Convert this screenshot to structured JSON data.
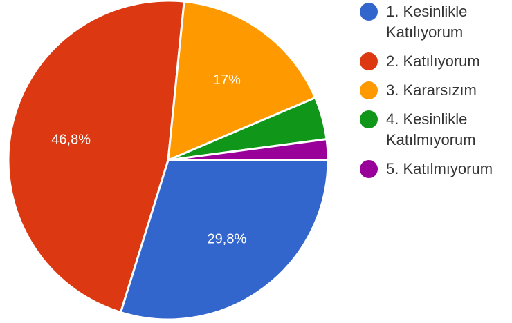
{
  "chart_data": {
    "type": "pie",
    "slices": [
      {
        "label": "1. Kesinlikle Katılıyorum",
        "value": 29.8,
        "color": "#3366cc",
        "data_label": "29,8%"
      },
      {
        "label": "2. Katılıyorum",
        "value": 46.8,
        "color": "#dc3912",
        "data_label": "46,8%"
      },
      {
        "label": "3. Kararsızım",
        "value": 17.0,
        "color": "#ff9900",
        "data_label": "17%"
      },
      {
        "label": "4. Kesinlikle Katılmıyorum",
        "value": 4.3,
        "color": "#109618",
        "data_label": ""
      },
      {
        "label": "5. Katılmıyorum",
        "value": 2.1,
        "color": "#990099",
        "data_label": ""
      }
    ],
    "legend_position": "right"
  }
}
